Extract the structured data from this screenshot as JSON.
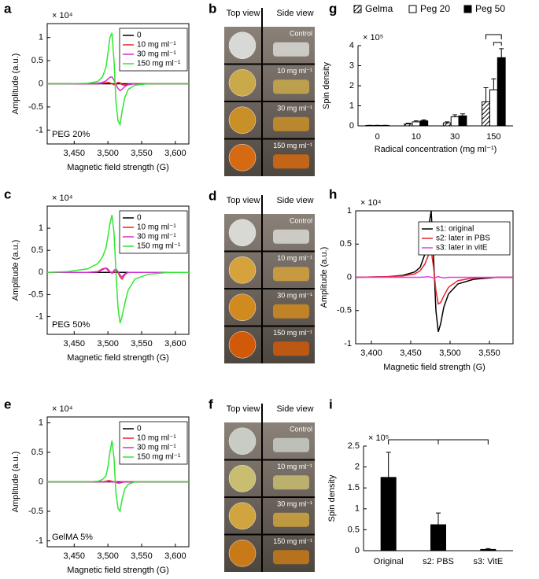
{
  "chart_data": [
    {
      "type": "line",
      "panel": "a",
      "multiplier": "× 10⁴",
      "xlabel": "Magnetic field strength (G)",
      "ylabel": "Amplitude (a.u.)",
      "annotation": "PEG 20%",
      "xlim": [
        3410,
        3620
      ],
      "xticks": [
        {
          "value": 3450,
          "label": "3,450"
        },
        {
          "value": 3500,
          "label": "3,500"
        },
        {
          "value": 3550,
          "label": "3,550"
        },
        {
          "value": 3600,
          "label": "3,600"
        }
      ],
      "ylim": [
        -1.3,
        1.3
      ],
      "yticks": [
        -1,
        -0.5,
        0,
        0.5,
        1
      ],
      "x": [
        3410,
        3440,
        3470,
        3485,
        3492,
        3497,
        3500,
        3503,
        3506,
        3509,
        3512,
        3515,
        3518,
        3521,
        3525,
        3530,
        3540,
        3560,
        3590,
        3620
      ],
      "series": [
        {
          "name": "0",
          "color": "#000000",
          "values": [
            0,
            0,
            0,
            0,
            0,
            0,
            0,
            0,
            0,
            0,
            0,
            0,
            0,
            0,
            0,
            0,
            0,
            0,
            0,
            0
          ]
        },
        {
          "name": "10 mg ml⁻¹",
          "color": "#e8222a",
          "values": [
            0,
            0,
            0,
            0,
            0.01,
            0.02,
            0.03,
            0.02,
            0,
            -0.02,
            0,
            0.03,
            0.02,
            -0.02,
            -0.03,
            -0.01,
            0,
            0,
            0,
            0
          ]
        },
        {
          "name": "30 mg ml⁻¹",
          "color": "#d62bd6",
          "values": [
            0,
            0,
            0,
            0.01,
            0.03,
            0.06,
            0.1,
            0.14,
            0.15,
            0.08,
            -0.02,
            -0.1,
            -0.15,
            -0.12,
            -0.06,
            -0.02,
            0,
            0,
            0,
            0
          ]
        },
        {
          "name": "150 mg ml⁻¹",
          "color": "#2ee82e",
          "values": [
            0,
            0,
            0.01,
            0.05,
            0.15,
            0.35,
            0.65,
            1.0,
            1.1,
            0.5,
            -0.4,
            -0.8,
            -0.88,
            -0.6,
            -0.3,
            -0.12,
            -0.03,
            0,
            0,
            0
          ]
        }
      ]
    },
    {
      "type": "bar",
      "panel": "g",
      "multiplier": "× 10⁵",
      "xlabel": "Radical concentration (mg ml⁻¹)",
      "ylabel": "Spin density",
      "categories": [
        "0",
        "10",
        "30",
        "150"
      ],
      "ylim": [
        0,
        4
      ],
      "yticks": [
        0,
        1,
        2,
        3,
        4
      ],
      "series": [
        {
          "name": "Gelma",
          "style": "hatched",
          "values": [
            0.02,
            0.1,
            0.15,
            1.2
          ],
          "errors": [
            0.01,
            0.03,
            0.05,
            0.7
          ]
        },
        {
          "name": "Peg 20",
          "style": "open",
          "values": [
            0.02,
            0.2,
            0.45,
            1.8
          ],
          "errors": [
            0.01,
            0.05,
            0.1,
            0.55
          ]
        },
        {
          "name": "Peg 50",
          "style": "solid",
          "values": [
            0.02,
            0.25,
            0.5,
            3.4
          ],
          "errors": [
            0.01,
            0.05,
            0.1,
            0.45
          ]
        }
      ]
    },
    {
      "type": "line",
      "panel": "c",
      "multiplier": "× 10⁴",
      "xlabel": "Magnetic field strength (G)",
      "ylabel": "Amplitude (a.u.)",
      "annotation": "PEG 50%",
      "xlim": [
        3410,
        3620
      ],
      "xticks": [
        {
          "value": 3450,
          "label": "3,450"
        },
        {
          "value": 3500,
          "label": "3,500"
        },
        {
          "value": 3550,
          "label": "3,550"
        },
        {
          "value": 3600,
          "label": "3,600"
        }
      ],
      "ylim": [
        -1.4,
        1.5
      ],
      "yticks": [
        -1,
        -0.5,
        0,
        0.5,
        1
      ],
      "x": [
        3410,
        3440,
        3470,
        3485,
        3492,
        3497,
        3500,
        3503,
        3506,
        3509,
        3512,
        3515,
        3518,
        3521,
        3525,
        3530,
        3540,
        3560,
        3590,
        3620
      ],
      "series": [
        {
          "name": "0",
          "color": "#000000",
          "values": [
            0,
            0,
            0,
            0,
            0,
            0,
            0,
            0,
            0,
            0,
            0,
            0,
            0,
            0,
            0,
            0,
            0,
            0,
            0,
            0
          ]
        },
        {
          "name": "10 mg ml⁻¹",
          "color": "#e8222a",
          "values": [
            0,
            0,
            0,
            0.02,
            0.08,
            0.1,
            0.05,
            0.02,
            -0.02,
            0,
            0.05,
            0,
            -0.1,
            -0.15,
            -0.05,
            0,
            0,
            0,
            0,
            0
          ]
        },
        {
          "name": "30 mg ml⁻¹",
          "color": "#d62bd6",
          "values": [
            0,
            0,
            0,
            0.01,
            0.06,
            0.1,
            0.08,
            0.02,
            -0.02,
            0.05,
            0.08,
            0.02,
            -0.06,
            -0.1,
            -0.03,
            0,
            0,
            0,
            0,
            0
          ]
        },
        {
          "name": "150 mg ml⁻¹",
          "color": "#2ee82e",
          "values": [
            0,
            0.02,
            0.08,
            0.2,
            0.35,
            0.55,
            0.8,
            1.1,
            1.3,
            0.9,
            0,
            -0.8,
            -1.15,
            -1.0,
            -0.7,
            -0.4,
            -0.15,
            -0.04,
            0,
            0
          ]
        }
      ]
    },
    {
      "type": "line",
      "panel": "h",
      "multiplier": "× 10⁴",
      "xlabel": "Magnetic field strength (G)",
      "ylabel": "Amplitude (a.u.)",
      "xlim": [
        3380,
        3580
      ],
      "xticks": [
        {
          "value": 3400,
          "label": "3,400"
        },
        {
          "value": 3450,
          "label": "3,450"
        },
        {
          "value": 3500,
          "label": "3,500"
        },
        {
          "value": 3550,
          "label": "3,550"
        }
      ],
      "ylim": [
        -1,
        1
      ],
      "yticks": [
        -1,
        -0.5,
        0,
        0.5,
        1
      ],
      "x": [
        3380,
        3420,
        3440,
        3455,
        3462,
        3468,
        3472,
        3476,
        3479,
        3482,
        3485,
        3488,
        3492,
        3498,
        3510,
        3530,
        3560,
        3580
      ],
      "series": [
        {
          "name": "s1: original",
          "color": "#000000",
          "values": [
            0,
            0.01,
            0.03,
            0.08,
            0.15,
            0.35,
            0.7,
            1.0,
            0.3,
            -0.5,
            -0.82,
            -0.7,
            -0.45,
            -0.25,
            -0.1,
            -0.03,
            0,
            0
          ]
        },
        {
          "name": "s2: later in PBS",
          "color": "#e8222a",
          "values": [
            0,
            0.01,
            0.02,
            0.05,
            0.1,
            0.2,
            0.32,
            0.4,
            0.15,
            -0.2,
            -0.4,
            -0.38,
            -0.28,
            -0.15,
            -0.05,
            -0.01,
            0,
            0
          ]
        },
        {
          "name": "s3: later in vitE",
          "color": "#e83ae8",
          "values": [
            0,
            0,
            0,
            0,
            0,
            0.005,
            0.01,
            0,
            -0.01,
            0,
            0.01,
            0,
            -0.01,
            0,
            0,
            0,
            0,
            0
          ]
        }
      ]
    },
    {
      "type": "line",
      "panel": "e",
      "multiplier": "× 10⁴",
      "xlabel": "Magnetic field strength (G)",
      "ylabel": "Amplitude (a.u.)",
      "annotation": "GelMA 5%",
      "xlim": [
        3410,
        3620
      ],
      "xticks": [
        {
          "value": 3450,
          "label": "3,450"
        },
        {
          "value": 3500,
          "label": "3,500"
        },
        {
          "value": 3550,
          "label": "3,550"
        },
        {
          "value": 3600,
          "label": "3,600"
        }
      ],
      "ylim": [
        -1.1,
        1.1
      ],
      "yticks": [
        -1,
        -0.5,
        0,
        0.5,
        1
      ],
      "x": [
        3410,
        3440,
        3470,
        3485,
        3492,
        3497,
        3500,
        3503,
        3506,
        3509,
        3512,
        3515,
        3518,
        3521,
        3525,
        3530,
        3540,
        3560,
        3590,
        3620
      ],
      "series": [
        {
          "name": "0",
          "color": "#000000",
          "values": [
            0,
            0,
            0,
            0,
            0,
            0,
            0,
            0,
            0,
            0,
            0,
            0,
            0,
            0,
            0,
            0,
            0,
            0,
            0,
            0
          ]
        },
        {
          "name": "10 mg ml⁻¹",
          "color": "#e8222a",
          "values": [
            0,
            0,
            0,
            0,
            0,
            0.01,
            0.02,
            0.02,
            0.01,
            0,
            -0.01,
            -0.02,
            -0.02,
            -0.01,
            0,
            0,
            0,
            0,
            0,
            0
          ]
        },
        {
          "name": "30 mg ml⁻¹",
          "color": "#d62bd6",
          "values": [
            0,
            0,
            0,
            0,
            0,
            0,
            0.01,
            0.01,
            0,
            0,
            0,
            -0.01,
            -0.01,
            0,
            0,
            0,
            0,
            0,
            0,
            0
          ]
        },
        {
          "name": "150 mg ml⁻¹",
          "color": "#2ee82e",
          "values": [
            0,
            0,
            0,
            0.01,
            0.04,
            0.1,
            0.25,
            0.5,
            0.7,
            0.4,
            -0.2,
            -0.45,
            -0.5,
            -0.3,
            -0.12,
            -0.04,
            0,
            0,
            0,
            0
          ]
        }
      ]
    },
    {
      "type": "bar",
      "panel": "i",
      "multiplier": "× 10⁵",
      "ylabel": "Spin density",
      "categories": [
        "Original",
        "s2: PBS",
        "s3: VitE"
      ],
      "ylim": [
        0,
        2.5
      ],
      "yticks": [
        0,
        0.5,
        1,
        1.5,
        2,
        2.5
      ],
      "series": [
        {
          "name": null,
          "style": "solid",
          "values": [
            1.75,
            0.62,
            0.03
          ],
          "errors": [
            0.6,
            0.28,
            0.02
          ]
        }
      ]
    }
  ],
  "photo_panels": [
    {
      "panel": "b",
      "headers": [
        "Top view",
        "Side view"
      ],
      "labels": [
        "Control",
        "10 mg ml⁻¹",
        "30 mg ml⁻¹",
        "150 mg ml⁻¹"
      ]
    },
    {
      "panel": "d",
      "headers": [
        "Top view",
        "Side view"
      ],
      "labels": [
        "Control",
        "10 mg ml⁻¹",
        "30 mg ml⁻¹",
        "150 mg ml⁻¹"
      ]
    },
    {
      "panel": "f",
      "headers": [
        "Top view",
        "Side view"
      ],
      "labels": [
        "Control",
        "10 mg ml⁻¹",
        "30 mg ml⁻¹",
        "150 mg ml⁻¹"
      ]
    }
  ]
}
